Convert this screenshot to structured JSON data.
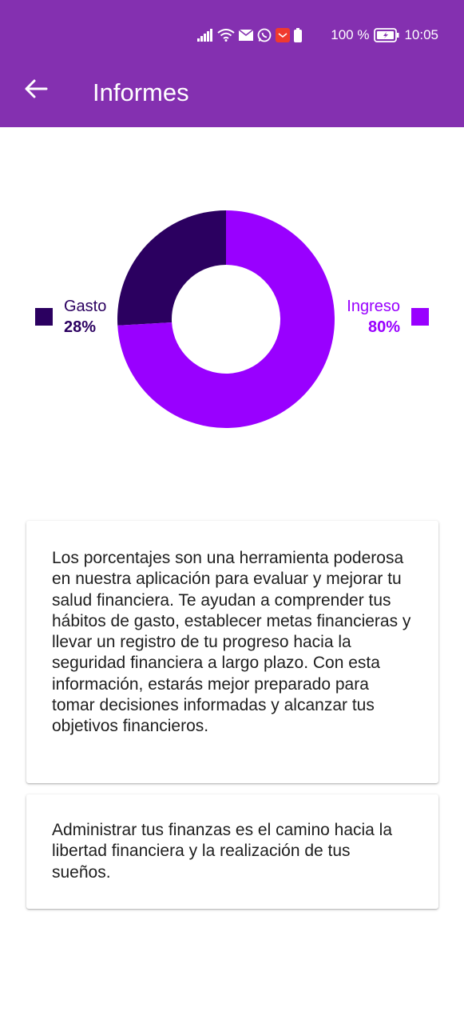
{
  "status_bar": {
    "battery_percent": "100 %",
    "time": "10:05"
  },
  "app_bar": {
    "title": "Informes",
    "back_icon": "arrow-left-icon"
  },
  "colors": {
    "app_bar": "#8430B0",
    "gasto": "#2B0060",
    "ingreso": "#9900FF"
  },
  "chart_data": {
    "type": "pie",
    "series": [
      {
        "name": "Gasto",
        "label": "28%",
        "value": 28,
        "color": "#2B0060"
      },
      {
        "name": "Ingreso",
        "label": "80%",
        "value": 80,
        "color": "#9900FF"
      }
    ]
  },
  "cards": {
    "info_text": "Los porcentajes son una herramienta poderosa en nuestra aplicación para evaluar y mejorar tu salud financiera. Te ayudan a comprender tus hábitos de gasto, establecer metas financieras y llevar un registro de tu progreso hacia la seguridad financiera a largo plazo. Con esta información, estarás mejor preparado para tomar decisiones informadas y alcanzar tus objetivos financieros.",
    "quote_text": "Administrar tus finanzas es el camino hacia la libertad financiera y la realización de tus sueños."
  }
}
